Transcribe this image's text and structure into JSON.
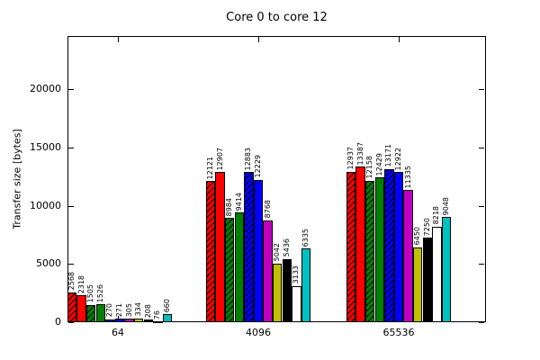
{
  "chart_data": {
    "type": "bar",
    "title": "Core 0 to core 12",
    "xlabel": "",
    "ylabel": "Transfer size [bytes]",
    "categories": [
      "64",
      "4096",
      "65536"
    ],
    "yticks": [
      0,
      5000,
      10000,
      15000,
      20000
    ],
    "ylim": [
      0,
      24600
    ],
    "grid": false,
    "legend": "none",
    "value_labels": "rotated-90-above-bars",
    "background_color": "#ffffff",
    "axis_color": "#000000",
    "series": [
      {
        "name": "red-hatched",
        "style": "hatched",
        "color": "#ff0000",
        "values": [
          2568,
          12121,
          12937
        ]
      },
      {
        "name": "red-solid",
        "style": "solid",
        "color": "#ff0000",
        "values": [
          2318,
          12907,
          13387
        ]
      },
      {
        "name": "green-hatched",
        "style": "hatched",
        "color": "#008000",
        "values": [
          1505,
          8984,
          12158
        ]
      },
      {
        "name": "green-solid",
        "style": "solid",
        "color": "#008000",
        "values": [
          1526,
          9414,
          12429
        ]
      },
      {
        "name": "blue-hatched",
        "style": "hatched",
        "color": "#0000ff",
        "values": [
          270,
          12883,
          13171
        ]
      },
      {
        "name": "blue-solid",
        "style": "solid",
        "color": "#0000ff",
        "values": [
          271,
          12229,
          12922
        ]
      },
      {
        "name": "magenta-solid",
        "style": "solid",
        "color": "#c000c0",
        "values": [
          305,
          8768,
          11335
        ]
      },
      {
        "name": "olive-solid",
        "style": "solid",
        "color": "#c0c000",
        "values": [
          334,
          5042,
          6450
        ]
      },
      {
        "name": "black-solid",
        "style": "solid",
        "color": "#000000",
        "values": [
          208,
          5436,
          7250
        ]
      },
      {
        "name": "white-solid",
        "style": "solid",
        "color": "#ffffff",
        "values": [
          76,
          3133,
          8218
        ]
      },
      {
        "name": "cyan-solid",
        "style": "solid",
        "color": "#00c0c0",
        "values": [
          660,
          6335,
          9048
        ]
      }
    ]
  }
}
